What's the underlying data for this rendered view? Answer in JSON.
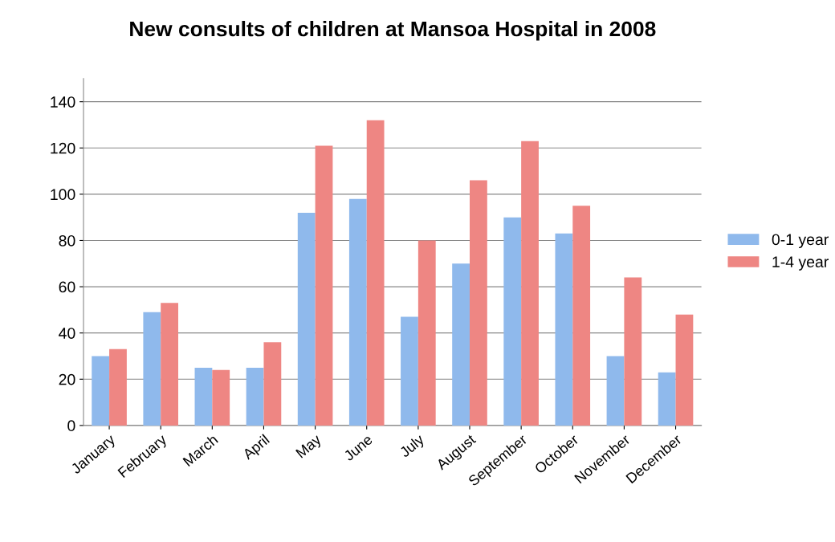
{
  "chart_data": {
    "type": "bar",
    "title": "New consults of children at Mansoa Hospital in 2008",
    "categories": [
      "January",
      "February",
      "March",
      "April",
      "May",
      "June",
      "July",
      "August",
      "September",
      "October",
      "November",
      "December"
    ],
    "series": [
      {
        "name": "0-1 year",
        "color": "#8fb9ec",
        "values": [
          30,
          49,
          25,
          25,
          92,
          98,
          47,
          70,
          90,
          83,
          30,
          23
        ]
      },
      {
        "name": "1-4 year",
        "color": "#ee8683",
        "values": [
          33,
          53,
          24,
          36,
          121,
          132,
          80,
          106,
          123,
          95,
          64,
          48
        ]
      }
    ],
    "ylim": [
      0,
      150
    ],
    "yticks": [
      0,
      20,
      40,
      60,
      80,
      100,
      120,
      140
    ],
    "grid": "y",
    "legend": "right"
  }
}
